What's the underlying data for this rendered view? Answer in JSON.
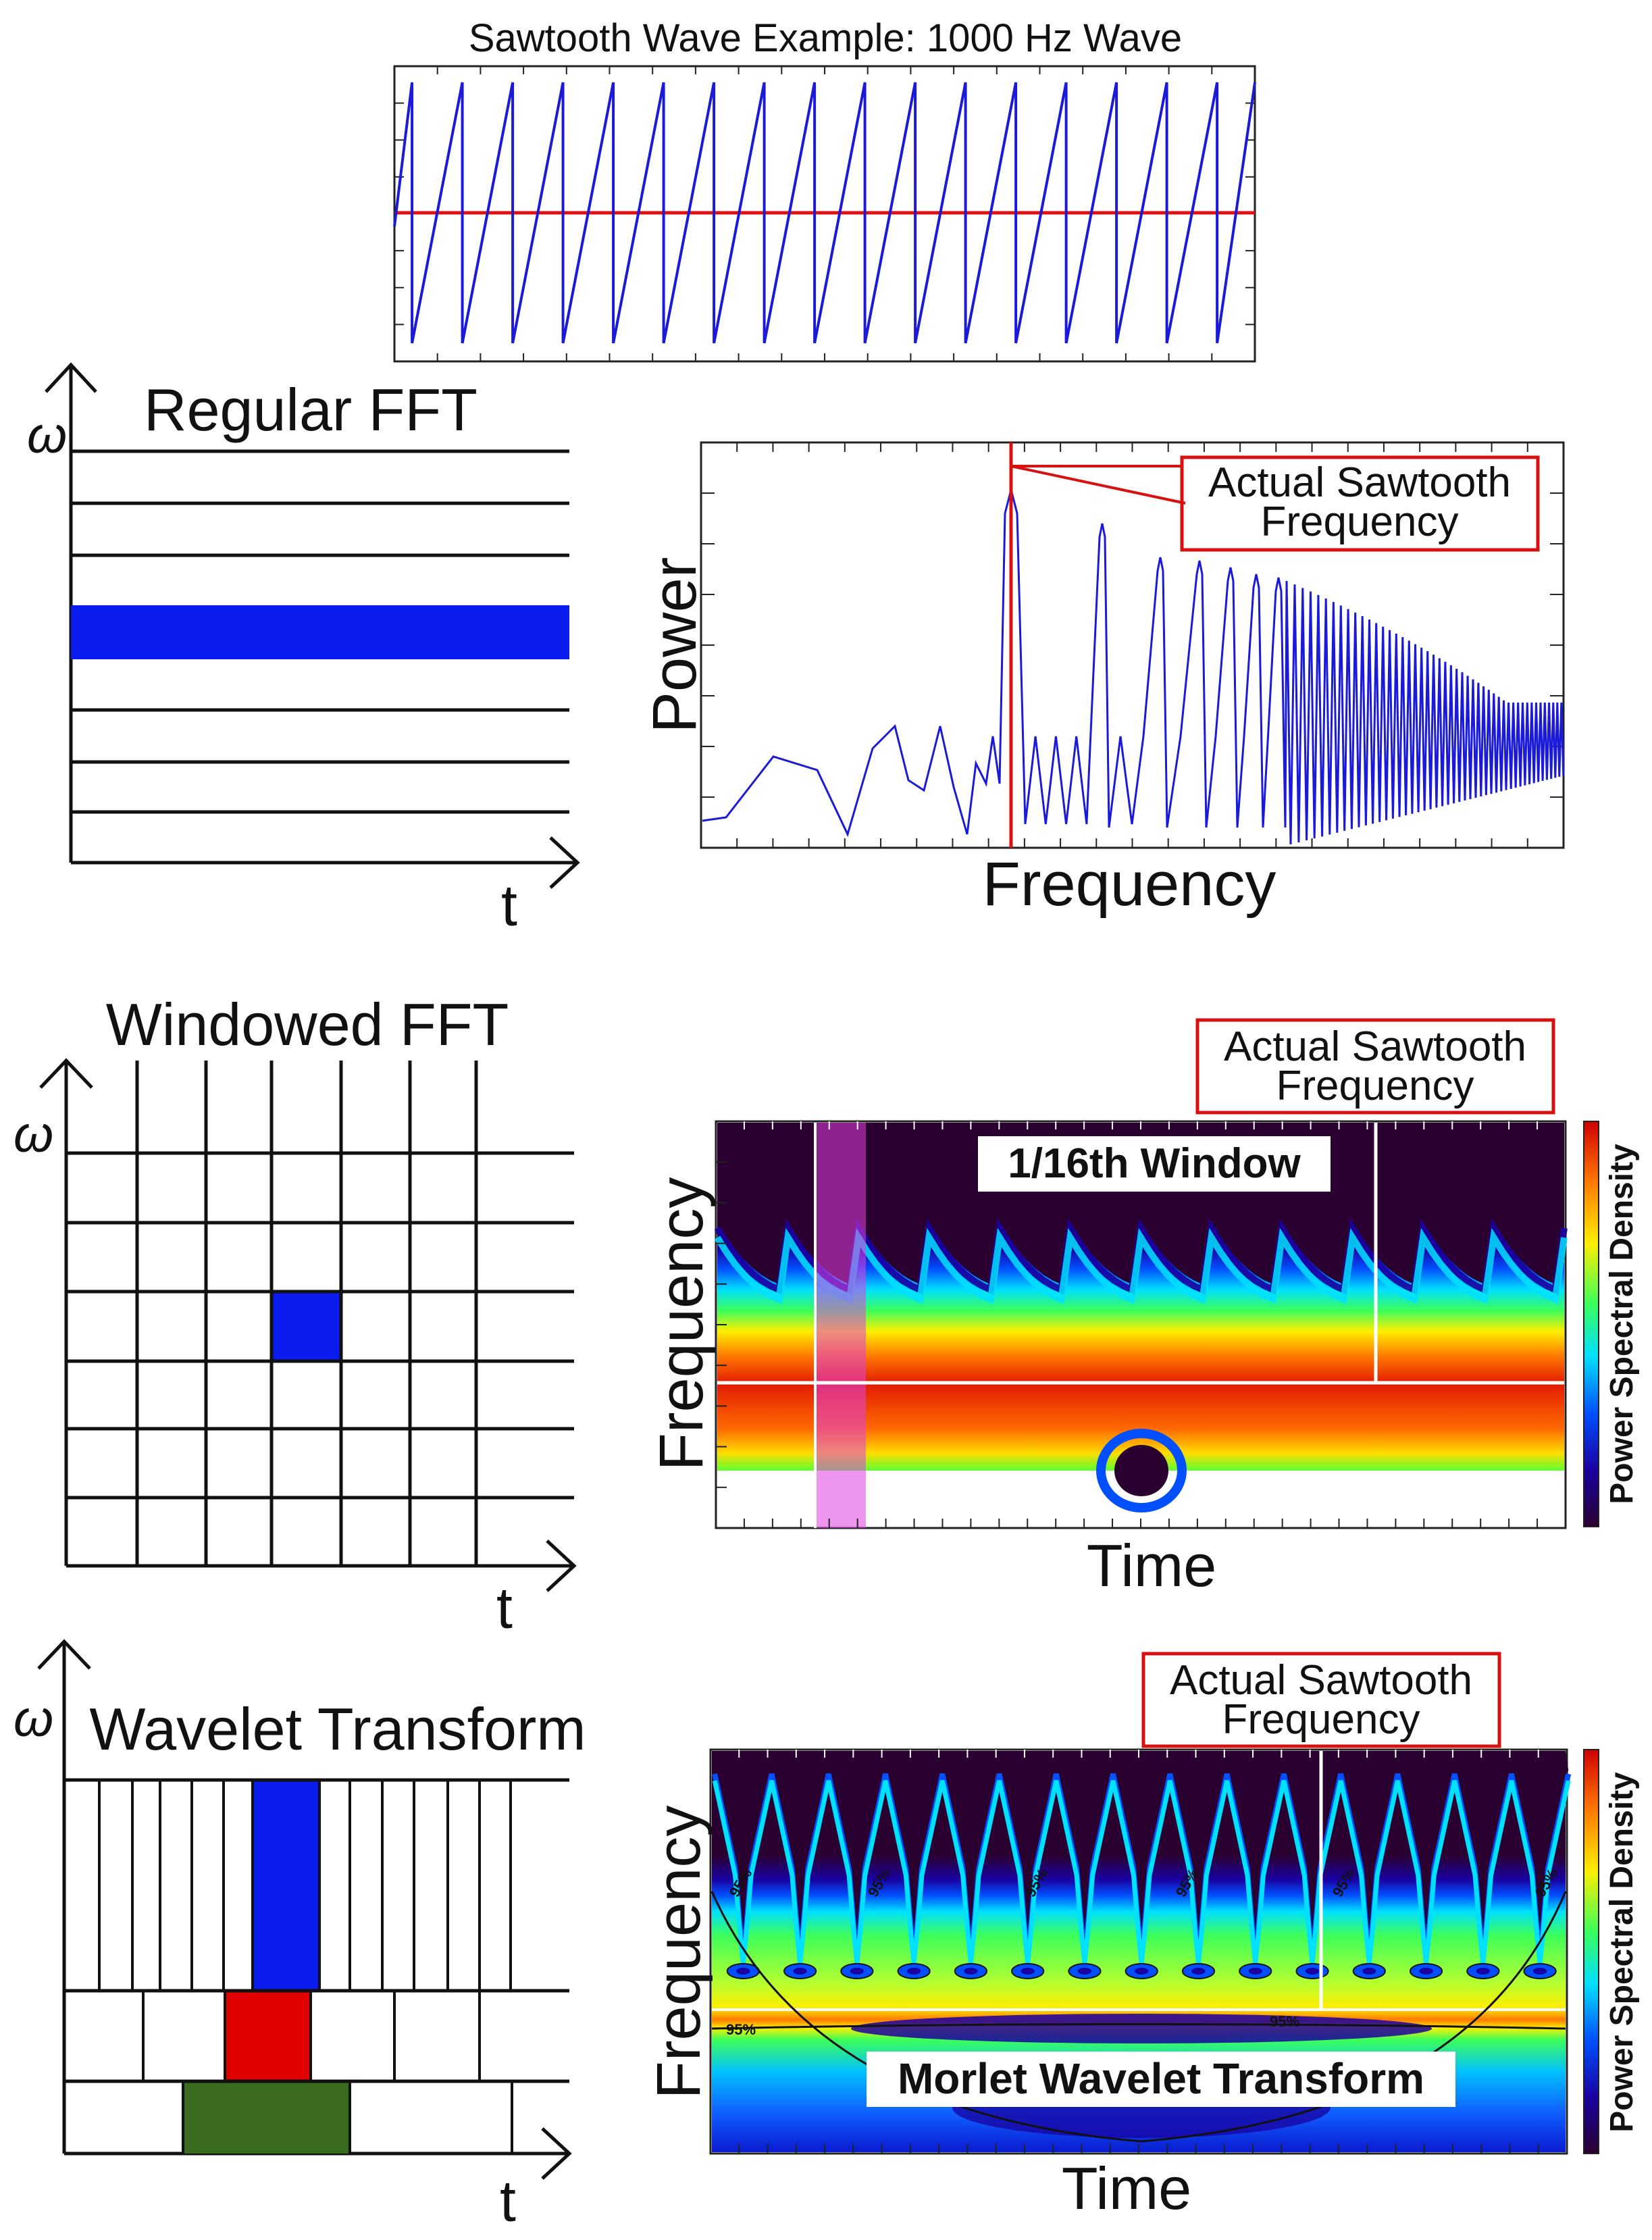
{
  "saw_panel": {
    "title": "Sawtooth Wave Example:  1000 Hz Wave",
    "wave_color": "#1a1ad8",
    "mean_line_color": "#e01010",
    "teeth": 17
  },
  "regular_fft": {
    "title": "Regular FFT",
    "y_axis": "ω",
    "x_axis": "t",
    "highlight_color": "#0a1bf0"
  },
  "power_plot": {
    "annotation_line1": "Actual Sawtooth",
    "annotation_line2": "Frequency",
    "ylabel": "Power",
    "xlabel": "Frequency",
    "trace_color": "#1a1ad8",
    "marker_color": "#d81010"
  },
  "windowed_fft": {
    "title": "Windowed FFT",
    "y_axis": "ω",
    "x_axis": "t",
    "highlight_color": "#0a1bf0"
  },
  "spectrogram": {
    "annotation_line1": "Actual Sawtooth",
    "annotation_line2": "Frequency",
    "inset_label": "1/16th Window",
    "ylabel": "Frequency",
    "xlabel": "Time",
    "colorbar_label": "Power Spectral Density"
  },
  "wavelet": {
    "title": "Wavelet Transform",
    "y_axis": "ω",
    "x_axis": "t",
    "colors": [
      "#0a1bf0",
      "#e00000",
      "#3a6b1f"
    ]
  },
  "scalogram": {
    "annotation_line1": "Actual Sawtooth",
    "annotation_line2": "Frequency",
    "inset_label": "Morlet Wavelet Transform",
    "ylabel": "Frequency",
    "xlabel": "Time",
    "colorbar_label": "Power Spectral Density",
    "contour_label": "95%"
  },
  "colorbar_colors": [
    "#d00000",
    "#ff7a00",
    "#ffee00",
    "#3cff5a",
    "#00e0ff",
    "#0050ff",
    "#1a00a0",
    "#2a0030"
  ]
}
